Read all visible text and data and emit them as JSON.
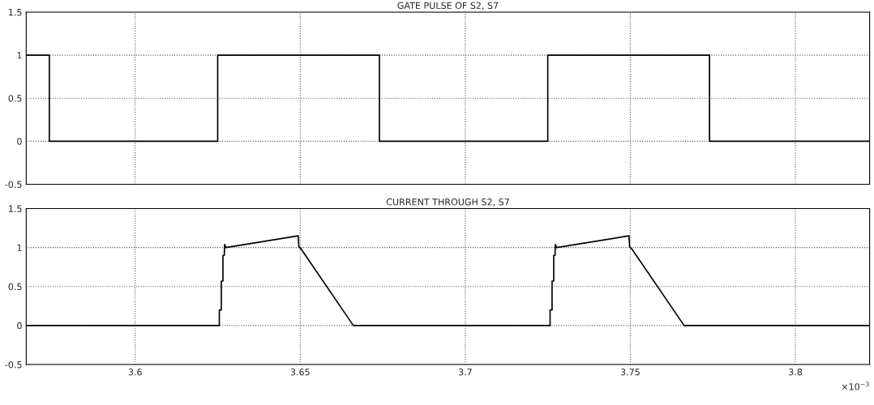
{
  "chart_data": [
    {
      "type": "line",
      "title": "GATE PULSE OF S2, S7",
      "xlim": [
        3.567,
        3.8225
      ],
      "ylim": [
        -0.5,
        1.5
      ],
      "xticks": [
        3.6,
        3.65,
        3.7,
        3.75,
        3.8
      ],
      "yticks": [
        -0.5,
        0,
        0.5,
        1,
        1.5
      ],
      "tick_labels": "y",
      "grid": true,
      "marker": "none",
      "line_style": "solid",
      "series": [
        {
          "color": "#000000",
          "x": [
            3.567,
            3.574,
            3.574,
            3.625,
            3.625,
            3.674,
            3.674,
            3.725,
            3.725,
            3.774,
            3.774,
            3.8225
          ],
          "values": [
            1,
            1,
            0,
            0,
            1,
            1,
            0,
            0,
            1,
            1,
            0,
            0
          ]
        }
      ]
    },
    {
      "type": "line",
      "title": "CURRENT THROUGH S2, S7",
      "xlim": [
        3.567,
        3.8225
      ],
      "ylim": [
        -0.5,
        1.5
      ],
      "xticks": [
        3.6,
        3.65,
        3.7,
        3.75,
        3.8
      ],
      "yticks": [
        -0.5,
        0,
        0.5,
        1,
        1.5
      ],
      "grid": true,
      "marker": "none",
      "line_style": "solid",
      "annotations": [
        "×10$^{−3}$"
      ],
      "series": [
        {
          "color": "#000000",
          "x": [
            3.567,
            3.6255,
            3.6255,
            3.6261,
            3.6261,
            3.6266,
            3.6266,
            3.627,
            3.6271,
            3.6275,
            3.6494,
            3.6496,
            3.6503,
            3.6661,
            3.7257,
            3.7257,
            3.7263,
            3.7263,
            3.7268,
            3.7268,
            3.7272,
            3.7273,
            3.7277,
            3.7496,
            3.7498,
            3.7505,
            3.7663,
            3.8225
          ],
          "values": [
            0,
            0,
            0.2,
            0.2,
            0.57,
            0.57,
            0.9,
            0.9,
            1.04,
            1.0,
            1.15,
            1.01,
            0.98,
            0,
            0,
            0.2,
            0.2,
            0.57,
            0.57,
            0.9,
            0.9,
            1.04,
            1.0,
            1.15,
            1.01,
            0.98,
            0,
            0
          ]
        }
      ]
    }
  ]
}
